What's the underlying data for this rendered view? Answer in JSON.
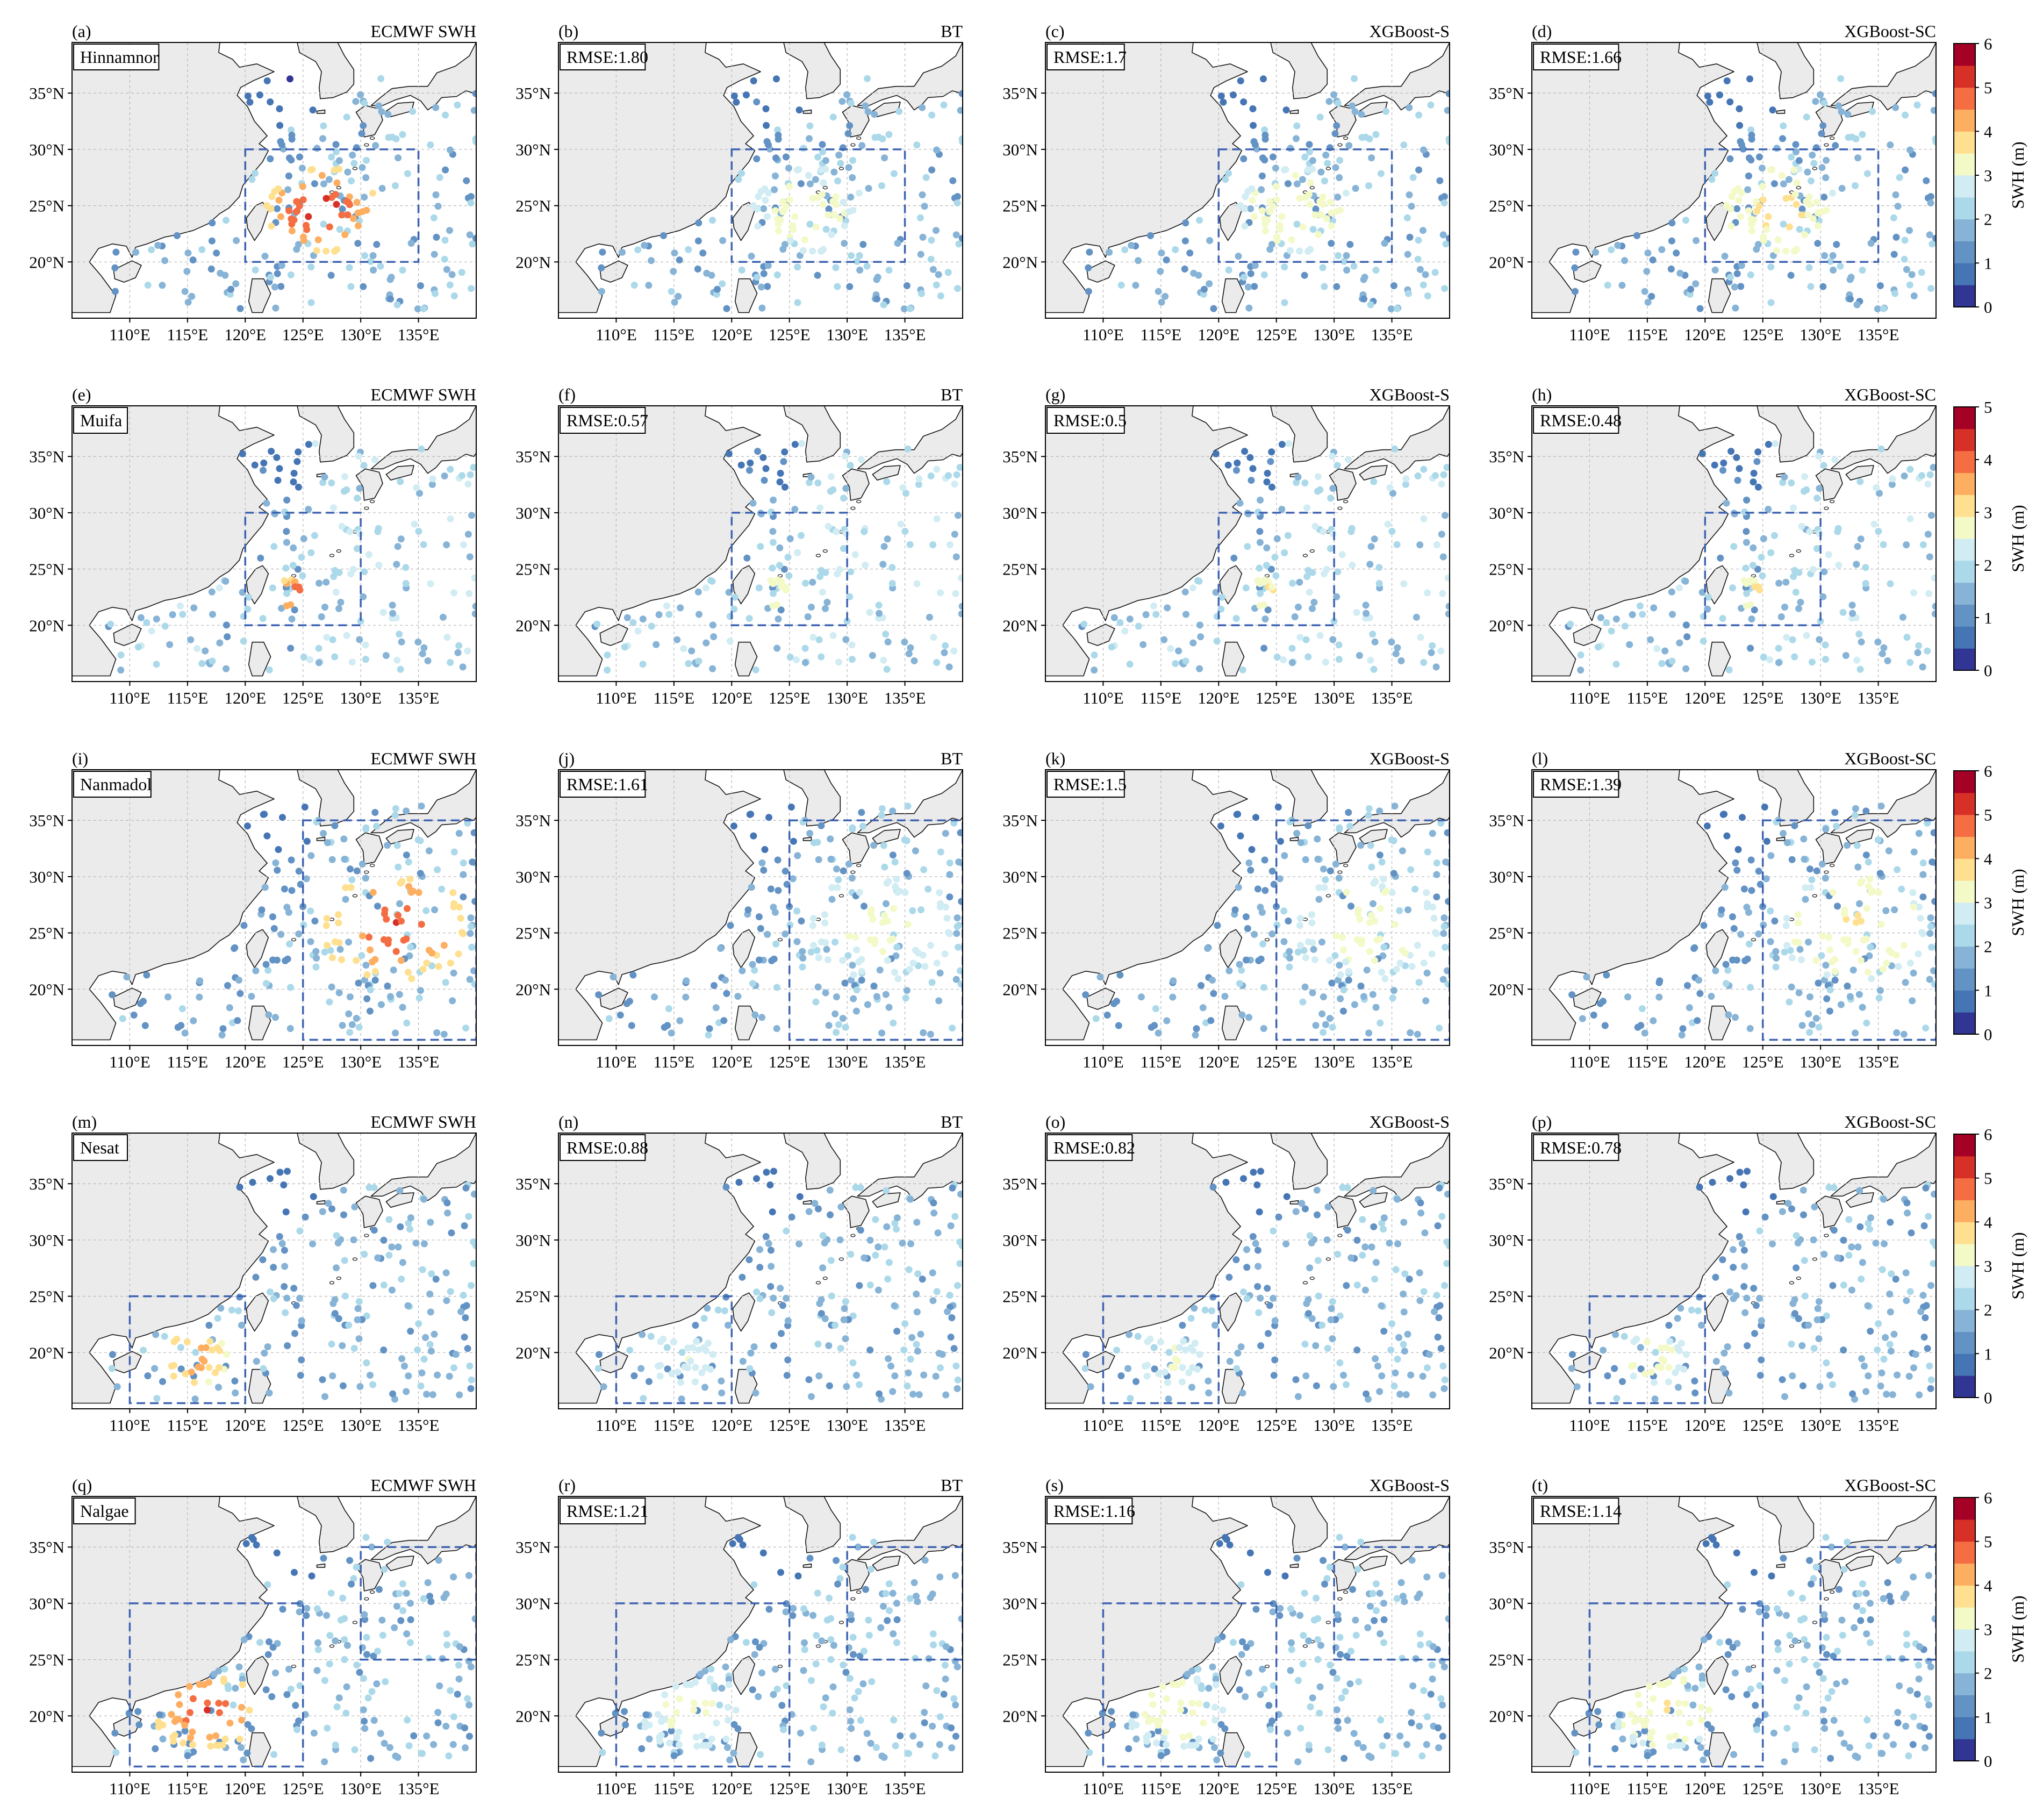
{
  "chart_data": {
    "type": "scatter",
    "description": "Maps of significant wave height (SWH) observation points in the northwest Pacific for five typhoons",
    "methods": [
      "ECMWF SWH",
      "BT",
      "XGBoost-S",
      "XGBoost-SC"
    ],
    "x_ticks": [
      "110°E",
      "115°E",
      "120°E",
      "125°E",
      "130°E",
      "135°E"
    ],
    "y_ticks": [
      "35°N",
      "30°N",
      "25°N",
      "20°N"
    ],
    "xlim": [
      105,
      140
    ],
    "ylim": [
      15,
      39.5
    ],
    "colorbar_label": "SWH (m)",
    "cmap_colors": [
      "#313695",
      "#4575b4",
      "#6392c4",
      "#86b3d6",
      "#abd9e9",
      "#d1ecf3",
      "#f4f9c8",
      "#fee090",
      "#fdae61",
      "#f46d43",
      "#d73027",
      "#a50026"
    ],
    "rows": [
      {
        "typhoon": "Hinnamnor",
        "letters": [
          "(a)",
          "(b)",
          "(c)",
          "(d)"
        ],
        "rmse": [
          "RMSE:1.80",
          "RMSE:1.7",
          "RMSE:1.66"
        ],
        "cbar_max": 6,
        "cbar_ticks": [
          "0",
          "1",
          "2",
          "3",
          "4",
          "5",
          "6"
        ],
        "boxes": [
          [
            120,
            135,
            20,
            30
          ]
        ],
        "hot_center": [
          126.5,
          24.5
        ],
        "hot_radius": 5,
        "hot_value": 5.6,
        "hot_points": 55
      },
      {
        "typhoon": "Muifa",
        "letters": [
          "(e)",
          "(f)",
          "(g)",
          "(h)"
        ],
        "rmse": [
          "RMSE:0.57",
          "RMSE:0.5",
          "RMSE:0.48"
        ],
        "cbar_max": 5,
        "cbar_ticks": [
          "0",
          "1",
          "2",
          "3",
          "4",
          "5"
        ],
        "boxes": [
          [
            120,
            130,
            20,
            30
          ]
        ],
        "hot_center": [
          124,
          22.8
        ],
        "hot_radius": 1.6,
        "hot_value": 4.6,
        "hot_points": 10
      },
      {
        "typhoon": "Nanmadol",
        "letters": [
          "(i)",
          "(j)",
          "(k)",
          "(l)"
        ],
        "rmse": [
          "RMSE:1.61",
          "RMSE:1.5",
          "RMSE:1.39"
        ],
        "cbar_max": 6,
        "cbar_ticks": [
          "0",
          "1",
          "2",
          "3",
          "4",
          "5",
          "6"
        ],
        "boxes": [
          [
            125,
            140,
            15.5,
            35
          ]
        ],
        "hot_center": [
          133,
          25.5
        ],
        "hot_radius": 6.5,
        "hot_value": 5.2,
        "hot_points": 60
      },
      {
        "typhoon": "Nesat",
        "letters": [
          "(m)",
          "(n)",
          "(o)",
          "(p)"
        ],
        "rmse": [
          "RMSE:0.88",
          "RMSE:0.82",
          "RMSE:0.78"
        ],
        "cbar_max": 6,
        "cbar_ticks": [
          "0",
          "1",
          "2",
          "3",
          "4",
          "5",
          "6"
        ],
        "boxes": [
          [
            110,
            120,
            15.5,
            25
          ]
        ],
        "hot_center": [
          115.5,
          19.5
        ],
        "hot_radius": 3,
        "hot_value": 4.8,
        "hot_points": 26
      },
      {
        "typhoon": "Nalgae",
        "letters": [
          "(q)",
          "(r)",
          "(s)",
          "(t)"
        ],
        "rmse": [
          "RMSE:1.21",
          "RMSE:1.16",
          "RMSE:1.14"
        ],
        "cbar_max": 6,
        "cbar_ticks": [
          "0",
          "1",
          "2",
          "3",
          "4",
          "5",
          "6"
        ],
        "boxes": [
          [
            110,
            125,
            15.5,
            30
          ],
          [
            130,
            140,
            25,
            35
          ]
        ],
        "hot_center": [
          116.5,
          20.5
        ],
        "hot_radius": 4.5,
        "hot_value": 5.3,
        "hot_points": 45
      }
    ]
  }
}
